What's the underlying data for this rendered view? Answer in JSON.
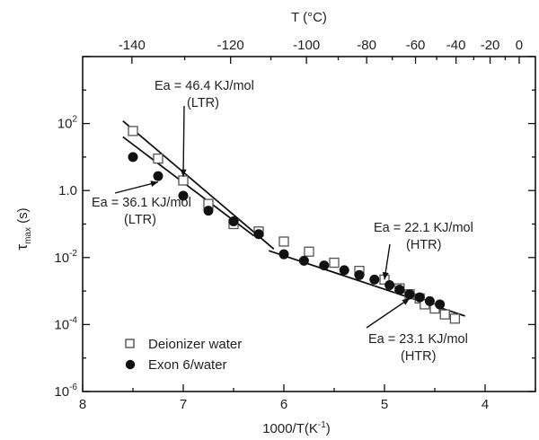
{
  "chart_data": {
    "type": "scatter",
    "scale": {
      "y": "log",
      "x_reversed": true
    },
    "xlabel": "1000/T(K",
    "xlabel_sup": "-1",
    "xlabel_end": ")",
    "ylabel": "τ",
    "ylabel_sub": "max",
    "ylabel_end": " (s)",
    "top_xlabel": "T (°C)",
    "xlim": [
      8,
      3.5
    ],
    "ylim_exp": [
      -6,
      4
    ],
    "x_ticks": [
      {
        "v": 8,
        "label": "8"
      },
      {
        "v": 7,
        "label": "7"
      },
      {
        "v": 6,
        "label": "6"
      },
      {
        "v": 5,
        "label": "5"
      },
      {
        "v": 4,
        "label": "4"
      }
    ],
    "y_ticks": [
      {
        "exp": -6,
        "base": "10",
        "sup": "-6"
      },
      {
        "exp": -4,
        "base": "10",
        "sup": "-4"
      },
      {
        "exp": -2,
        "base": "10",
        "sup": "-2"
      },
      {
        "exp": 0,
        "base": "1.0",
        "sup": ""
      },
      {
        "exp": 2,
        "base": "10",
        "sup": "2"
      }
    ],
    "top_ticks": [
      {
        "v": -140,
        "label": "-140"
      },
      {
        "v": -120,
        "label": "-120"
      },
      {
        "v": -100,
        "label": "-100"
      },
      {
        "v": -80,
        "label": "-80"
      },
      {
        "v": -60,
        "label": "-60"
      },
      {
        "v": -40,
        "label": "-40"
      },
      {
        "v": -20,
        "label": "-20"
      },
      {
        "v": 0,
        "label": "0"
      }
    ],
    "series": [
      {
        "name": "Deionizer water",
        "marker": "open-square",
        "points": [
          [
            7.5,
            60
          ],
          [
            7.25,
            9
          ],
          [
            7.0,
            2
          ],
          [
            6.75,
            0.4
          ],
          [
            6.5,
            0.1
          ],
          [
            6.25,
            0.06
          ],
          [
            6.0,
            0.03
          ],
          [
            5.75,
            0.015
          ],
          [
            5.5,
            0.007
          ],
          [
            5.25,
            0.004
          ],
          [
            5.0,
            0.0022
          ],
          [
            4.85,
            0.0012
          ],
          [
            4.75,
            0.0008
          ],
          [
            4.65,
            0.0006
          ],
          [
            4.6,
            0.0004
          ],
          [
            4.5,
            0.0003
          ],
          [
            4.4,
            0.0002
          ],
          [
            4.3,
            0.00015
          ]
        ]
      },
      {
        "name": "Exon 6/water",
        "marker": "filled-circle",
        "points": [
          [
            7.5,
            10
          ],
          [
            7.25,
            2.7
          ],
          [
            7.0,
            0.7
          ],
          [
            6.75,
            0.25
          ],
          [
            6.5,
            0.12
          ],
          [
            6.25,
            0.05
          ],
          [
            6.0,
            0.0125
          ],
          [
            5.8,
            0.008
          ],
          [
            5.6,
            0.0058
          ],
          [
            5.4,
            0.0042
          ],
          [
            5.25,
            0.003
          ],
          [
            5.1,
            0.0022
          ],
          [
            4.95,
            0.0015
          ],
          [
            4.85,
            0.0011
          ],
          [
            4.75,
            0.0008
          ],
          [
            4.65,
            0.00065
          ],
          [
            4.55,
            0.0005
          ],
          [
            4.45,
            0.0004
          ]
        ]
      }
    ],
    "fit_lines": [
      {
        "x": [
          7.6,
          6.1
        ],
        "y": [
          120,
          0.018
        ]
      },
      {
        "x": [
          7.6,
          6.3
        ],
        "y": [
          40,
          0.045
        ]
      },
      {
        "x": [
          6.15,
          4.2
        ],
        "y": [
          0.016,
          0.00018
        ]
      }
    ],
    "annotations": [
      {
        "lines": [
          "Ea = 46.4 KJ/mol",
          "(LTR)"
        ],
        "arrow_to": [
          7.0,
          2.6
        ]
      },
      {
        "lines": [
          "Ea = 36.1 KJ/mol",
          "(LTR)"
        ],
        "arrow_to": [
          7.25,
          1.8
        ]
      },
      {
        "lines": [
          "Ea = 22.1 KJ/mol",
          "(HTR)"
        ],
        "arrow_to": [
          5.0,
          0.0022
        ]
      },
      {
        "lines": [
          "Ea = 23.1 KJ/mol",
          "(HTR)"
        ],
        "arrow_to": [
          4.75,
          0.0006
        ]
      }
    ],
    "legend": {
      "position": "bottom-left"
    }
  }
}
